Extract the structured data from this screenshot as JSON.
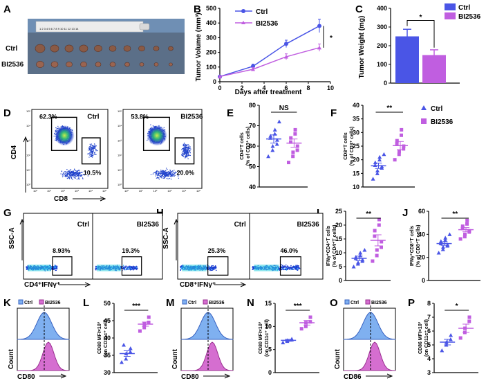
{
  "panels": {
    "A": "A",
    "B": "B",
    "C": "C",
    "D": "D",
    "E": "E",
    "F": "F",
    "G": "G",
    "H": "H",
    "I": "I",
    "J": "J",
    "K": "K",
    "L": "L",
    "M": "M",
    "N": "N",
    "O": "O",
    "P": "P"
  },
  "groups": {
    "ctrl": "Ctrl",
    "bi": "BI2536"
  },
  "colors": {
    "ctrl": "#4a55e6",
    "bi": "#c05ee0",
    "ctrl_fill": "#7fb0f0",
    "bi_fill": "#d56ed0"
  },
  "photo": {
    "ruler_text": "1 2 3 4 5 6 7 8 9 10 11 12 13 14",
    "row_ctrl": "Ctrl",
    "row_bi": "BI2536"
  },
  "tumor_volume": {
    "type": "line",
    "ylabel": "Tumor Volume (mm³)",
    "xlabel": "Days after treatment",
    "x": [
      0,
      3,
      6,
      9
    ],
    "yticks": [
      0,
      100,
      200,
      300,
      400,
      500
    ],
    "xticks": [
      0,
      2,
      4,
      6,
      8,
      10
    ],
    "ylim": [
      0,
      500
    ],
    "xlim": [
      0,
      10
    ],
    "series": [
      {
        "name": "Ctrl",
        "values": [
          35,
          105,
          258,
          380
        ],
        "err": [
          5,
          15,
          25,
          45
        ]
      },
      {
        "name": "BI2536",
        "values": [
          35,
          85,
          170,
          232
        ],
        "err": [
          5,
          12,
          20,
          25
        ]
      }
    ],
    "sig": "*"
  },
  "tumor_weight": {
    "type": "bar",
    "ylabel": "Tumor Weight (mg)",
    "categories": [
      "Ctrl",
      "BI2536"
    ],
    "values": [
      250,
      150
    ],
    "err": [
      38,
      28
    ],
    "yticks": [
      0,
      100,
      200,
      300,
      400
    ],
    "ylim": [
      0,
      400
    ],
    "sig": "*"
  },
  "flow_cd4_cd8": {
    "ylabel": "CD4",
    "xlabel": "CD8",
    "plots": [
      {
        "name": "Ctrl",
        "q1": "62.3%",
        "q2": "10.5%"
      },
      {
        "name": "BI2536",
        "q1": "53.8%",
        "q2": "20.0%"
      }
    ],
    "ticks": [
      "10⁰",
      "10¹",
      "10²",
      "10³",
      "10⁴",
      "10⁵"
    ]
  },
  "cd4_pct": {
    "type": "scatter",
    "ylabel1": "CD4⁺T cells",
    "ylabel2": "(% of CD3⁺ cells)",
    "yticks": [
      40,
      50,
      60,
      70,
      80
    ],
    "ylim": [
      40,
      80
    ],
    "series": [
      {
        "name": "Ctrl",
        "values": [
          55,
          58,
          60,
          61,
          63,
          64,
          65,
          66,
          68,
          72
        ],
        "mean": 63.5,
        "sem": 2
      },
      {
        "name": "BI2536",
        "values": [
          52,
          55,
          57,
          58,
          60,
          62,
          64,
          66,
          68
        ],
        "mean": 61.5,
        "sem": 2
      }
    ],
    "sig": "NS"
  },
  "cd8_pct": {
    "type": "scatter",
    "ylabel1": "CD8⁺T cells",
    "ylabel2": "(% of CD3⁺ cells)",
    "yticks": [
      10,
      15,
      20,
      25,
      30,
      35,
      40
    ],
    "ylim": [
      10,
      40
    ],
    "series": [
      {
        "name": "Ctrl",
        "values": [
          13,
          15,
          16,
          17,
          17.5,
          18,
          19,
          20,
          21,
          22
        ],
        "mean": 17.8,
        "sem": 1
      },
      {
        "name": "BI2536",
        "values": [
          20,
          22,
          23,
          24,
          25,
          26,
          27,
          29,
          31
        ],
        "mean": 25.2,
        "sem": 1.5
      }
    ],
    "sig": "**"
  },
  "ifng_cd4": {
    "ylabel": "SSC-A",
    "xlabel": "CD4⁺IFNγ⁺",
    "plots": [
      {
        "name": "Ctrl",
        "gate": "8.93%"
      },
      {
        "name": "BI2536",
        "gate": "19.3%"
      }
    ]
  },
  "ifng_cd8": {
    "ylabel": "SSC-A",
    "xlabel": "CD8⁺IFNγ⁺",
    "plots": [
      {
        "name": "Ctrl",
        "gate": "25.3%"
      },
      {
        "name": "BI2536",
        "gate": "46.0%"
      }
    ]
  },
  "ifng_cd4_pct": {
    "type": "scatter",
    "ylabel1": "IFNγ⁺CD4⁺T cells",
    "ylabel2": "(% of CD4⁺T cells)",
    "yticks": [
      0,
      5,
      10,
      15,
      20,
      25
    ],
    "ylim": [
      0,
      25
    ],
    "series": [
      {
        "name": "Ctrl",
        "values": [
          5,
          6,
          6.5,
          7,
          7.5,
          8,
          8.5,
          9,
          10,
          11
        ],
        "mean": 8,
        "sem": 0.8
      },
      {
        "name": "BI2536",
        "values": [
          7,
          9,
          11,
          12,
          14,
          16,
          18,
          20,
          22
        ],
        "mean": 14.5,
        "sem": 2
      }
    ],
    "sig": "**"
  },
  "ifng_cd8_pct": {
    "type": "scatter",
    "ylabel1": "IFNγ⁺CD8⁺T cells",
    "ylabel2": "(% of CD8⁺T cells)",
    "yticks": [
      0,
      20,
      40,
      60
    ],
    "ylim": [
      0,
      60
    ],
    "series": [
      {
        "name": "Ctrl",
        "values": [
          24,
          27,
          29,
          30,
          31,
          32,
          34,
          35,
          37,
          40
        ],
        "mean": 32,
        "sem": 1.5
      },
      {
        "name": "BI2536",
        "values": [
          36,
          38,
          40,
          42,
          43,
          45,
          47,
          49,
          52
        ],
        "mean": 44,
        "sem": 1.8
      }
    ],
    "sig": "**"
  },
  "hist": [
    {
      "xlabel": "CD80",
      "ylabel": "Count"
    },
    {
      "xlabel": "CD80",
      "ylabel": "Count"
    },
    {
      "xlabel": "CD86",
      "ylabel": "Count"
    }
  ],
  "mfi_L": {
    "type": "scatter",
    "ylabel1": "CD80 MFI×10³",
    "ylabel2": "(on CD11c⁺ cell)",
    "yticks": [
      30,
      35,
      40,
      45,
      50
    ],
    "ylim": [
      30,
      50
    ],
    "series": [
      {
        "name": "Ctrl",
        "values": [
          33,
          34,
          35.5,
          36,
          37,
          38
        ],
        "mean": 35.5,
        "sem": 0.8
      },
      {
        "name": "BI2536",
        "values": [
          42,
          43,
          44,
          44.5,
          46
        ],
        "mean": 44,
        "sem": 0.6
      }
    ],
    "sig": "***"
  },
  "mfi_N": {
    "type": "scatter",
    "ylabel1": "CD80 MFI×10³",
    "ylabel2": "(on CD11c⁺ cell)",
    "yticks": [
      0,
      5,
      10,
      15
    ],
    "ylim": [
      0,
      15
    ],
    "series": [
      {
        "name": "Ctrl",
        "values": [
          6.5,
          6.8,
          7,
          7.1,
          7.3
        ],
        "mean": 7,
        "sem": 0.2
      },
      {
        "name": "BI2536",
        "values": [
          9.5,
          10,
          10.8,
          11,
          12
        ],
        "mean": 10.8,
        "sem": 0.5
      }
    ],
    "sig": "***"
  },
  "mfi_P": {
    "type": "scatter",
    "ylabel1": "CD86 MFI×10³",
    "ylabel2": "(on CD11c⁺ cell)",
    "yticks": [
      3,
      4,
      5,
      6,
      7,
      8
    ],
    "ylim": [
      3,
      8
    ],
    "series": [
      {
        "name": "Ctrl",
        "values": [
          4.6,
          5,
          5.2,
          5.4,
          5.7
        ],
        "mean": 5.2,
        "sem": 0.2
      },
      {
        "name": "BI2536",
        "values": [
          5.5,
          5.9,
          6.2,
          6.7,
          7
        ],
        "mean": 6.2,
        "sem": 0.3
      }
    ],
    "sig": "*"
  }
}
